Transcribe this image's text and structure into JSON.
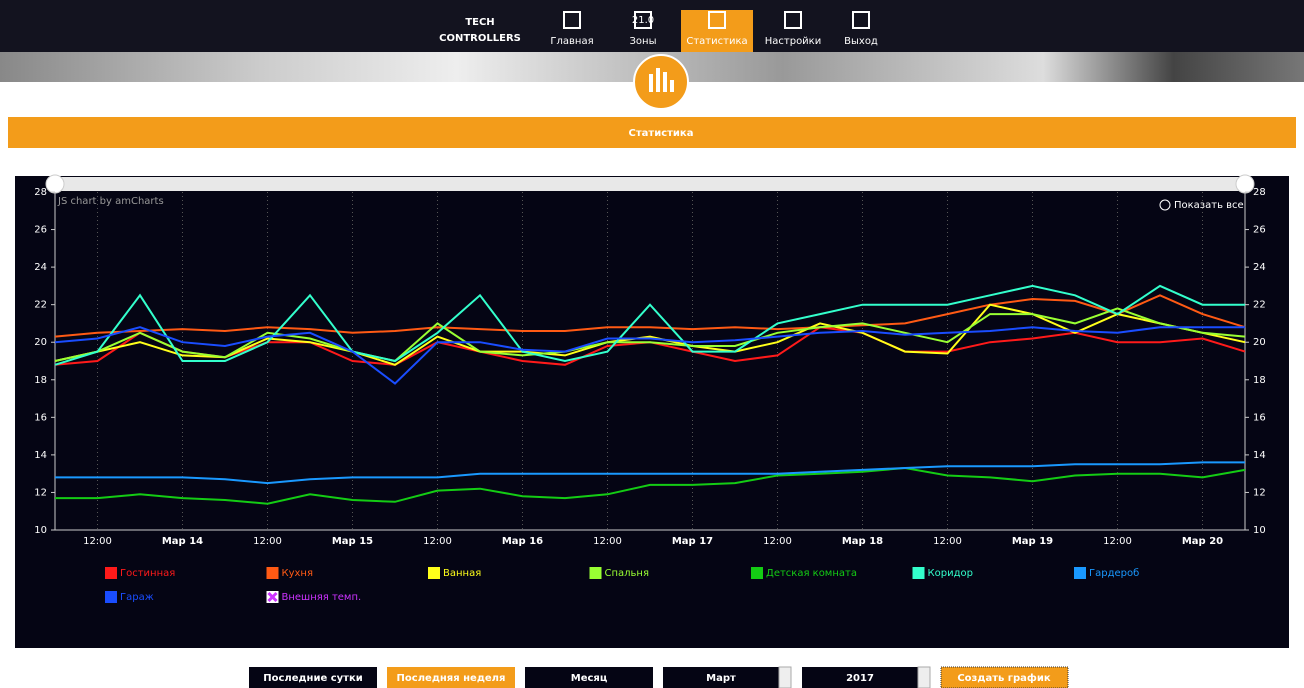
{
  "nav": {
    "logo": "TECH",
    "logo_sub": "CONTROLLERS",
    "zone_badge": "21.0",
    "items": [
      "Главная",
      "Зоны",
      "Статистика",
      "Настройки",
      "Выход"
    ],
    "active": 2
  },
  "page_title": "Статистика",
  "chart_data": {
    "type": "line",
    "credit": "JS chart by amCharts",
    "zoom_label": "Показать все",
    "categories": [
      null,
      "12:00",
      null,
      "Мар 14",
      null,
      "12:00",
      null,
      "Мар 15",
      null,
      "12:00",
      null,
      "Мар 16",
      null,
      "12:00",
      null,
      "Мар 17",
      null,
      "12:00",
      null,
      "Мар 18",
      null,
      "12:00",
      null,
      "Мар 19",
      null,
      "12:00",
      null,
      "Мар 20",
      null
    ],
    "ylim": [
      10,
      28
    ],
    "yticks": [
      10,
      12,
      14,
      16,
      18,
      20,
      22,
      24,
      26,
      28
    ],
    "grid": "x",
    "series": [
      {
        "name": "Гостинная",
        "color": "#ff1a1a",
        "values": [
          18.8,
          19,
          20.5,
          19.5,
          19.2,
          20,
          20,
          19,
          18.8,
          20,
          19.5,
          19,
          18.8,
          19.8,
          20,
          19.5,
          19,
          19.3,
          20.8,
          20.5,
          19.5,
          19.5,
          20,
          20.2,
          20.5,
          20,
          20,
          20.2,
          19.5
        ]
      },
      {
        "name": "Кухня",
        "color": "#ff5a14",
        "values": [
          20.3,
          20.5,
          20.6,
          20.7,
          20.6,
          20.8,
          20.7,
          20.5,
          20.6,
          20.8,
          20.7,
          20.6,
          20.6,
          20.8,
          20.8,
          20.7,
          20.8,
          20.7,
          20.8,
          20.9,
          21,
          21.5,
          22,
          22.3,
          22.2,
          21.5,
          22.5,
          21.5,
          20.8
        ]
      },
      {
        "name": "Ванная",
        "color": "#ffff1a",
        "values": [
          19,
          19.5,
          20,
          19.3,
          19.2,
          20.2,
          20,
          19.5,
          18.8,
          20.3,
          19.5,
          19.5,
          19.3,
          20,
          20.3,
          19.8,
          19.5,
          20,
          21,
          20.5,
          19.5,
          19.4,
          22,
          21.5,
          20.5,
          21.5,
          21,
          20.5,
          20
        ]
      },
      {
        "name": "Спальня",
        "color": "#99ff33",
        "values": [
          19,
          19.5,
          20.5,
          19.5,
          19.2,
          20.5,
          20.2,
          19.5,
          19,
          21,
          19.5,
          19.3,
          19.5,
          20,
          20,
          19.8,
          19.8,
          20.5,
          20.8,
          21,
          20.5,
          20,
          21.5,
          21.5,
          21,
          21.8,
          21,
          20.5,
          20.3
        ]
      },
      {
        "name": "Детская комната",
        "color": "#14cc14",
        "values": [
          11.7,
          11.7,
          11.9,
          11.7,
          11.6,
          11.4,
          11.9,
          11.6,
          11.5,
          12.1,
          12.2,
          11.8,
          11.7,
          11.9,
          12.4,
          12.4,
          12.5,
          12.9,
          13,
          13.1,
          13.3,
          12.9,
          12.8,
          12.6,
          12.9,
          13,
          13,
          12.8,
          13.2
        ]
      },
      {
        "name": "Коридор",
        "color": "#33ffcc",
        "values": [
          18.8,
          19.5,
          22.5,
          19,
          19,
          20,
          22.5,
          19.5,
          19,
          20.5,
          22.5,
          19.5,
          19,
          19.5,
          22,
          19.5,
          19.5,
          21,
          21.5,
          22,
          22,
          22,
          22.5,
          23,
          22.5,
          21.5,
          23,
          22,
          22
        ]
      },
      {
        "name": "Гардероб",
        "color": "#1a99ff",
        "values": [
          12.8,
          12.8,
          12.8,
          12.8,
          12.7,
          12.5,
          12.7,
          12.8,
          12.8,
          12.8,
          13,
          13,
          13,
          13,
          13,
          13,
          13,
          13,
          13.1,
          13.2,
          13.3,
          13.4,
          13.4,
          13.4,
          13.5,
          13.5,
          13.5,
          13.6,
          13.6
        ]
      },
      {
        "name": "Гараж",
        "color": "#1a4dff",
        "values": [
          20,
          20.2,
          20.8,
          20,
          19.8,
          20.3,
          20.5,
          19.5,
          17.8,
          20,
          20,
          19.6,
          19.5,
          20.2,
          20.2,
          20,
          20.1,
          20.3,
          20.5,
          20.6,
          20.4,
          20.5,
          20.6,
          20.8,
          20.6,
          20.5,
          20.8,
          20.8,
          20.8
        ]
      },
      {
        "name": "Внешняя темп.",
        "color": "#cc33ff",
        "hidden": true,
        "values": [
          null,
          null,
          null,
          null,
          null,
          null,
          null,
          null,
          null,
          null,
          null,
          null,
          null,
          null,
          null,
          null,
          null,
          null,
          null,
          null,
          null,
          null,
          null,
          null,
          null,
          null,
          null,
          null,
          null
        ]
      }
    ]
  },
  "controls": {
    "buttons": [
      "Последние сутки",
      "Последняя неделя",
      "Месяц"
    ],
    "active": 1,
    "month": "Март",
    "year": "2017",
    "submit": "Создать график"
  }
}
